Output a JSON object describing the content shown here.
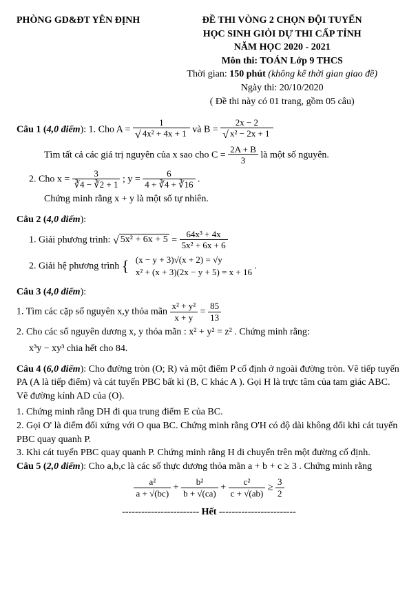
{
  "header": {
    "dept": "PHÒNG GD&ĐT YÊN ĐỊNH",
    "title1": "ĐỀ THI VÒNG 2 CHỌN ĐỘI TUYỂN",
    "title2": "HỌC SINH GIỎI DỰ THI CẤP TỈNH",
    "year": "NĂM HỌC 2020 - 2021",
    "subject": "Môn thi: TOÁN Lớp 9 THCS",
    "time_prefix": "Thời gian: ",
    "time_bold": "150 phút",
    "time_suffix": " (không kể thời gian giao đề)",
    "date": "Ngày thi: 20/10/2020",
    "note": "( Đề thi này có 01 trang, gồm 05 câu)"
  },
  "q1": {
    "label": "Câu 1 (",
    "points": "4,0 điểm",
    "label_end": "): 1.  Cho ",
    "A_lhs": "A =",
    "A_num": "1",
    "A_den_rad": "4x² + 4x + 1",
    "mid": "  và  ",
    "B_lhs": "B =",
    "B_num": "2x − 2",
    "B_den_rad": "x² − 2x + 1",
    "line2a": "Tìm tất cả các giá trị nguyên của  x  sao cho  ",
    "C_lhs": "C =",
    "C_num": "2A + B",
    "C_den": "3",
    "line2b": "  là một số nguyên.",
    "part2_pre": "2.   Cho x =",
    "x_num": "3",
    "x_den": "∛4 − ∛2 + 1",
    "part2_mid": " ; y =",
    "y_num": "6",
    "y_den": "4 + ∛4 + ∛16",
    "part2_end": " .",
    "line3": "Chứng minh rằng x + y là một số tự nhiên."
  },
  "q2": {
    "label": "Câu 2 (",
    "points": "4,0 điểm",
    "label_end": "):",
    "p1_pre": "1. Giải phương trình:    ",
    "p1_lhs_rad": "5x² + 6x + 5",
    "p1_eq": " = ",
    "p1_num": "64x³ + 4x",
    "p1_den": "5x² + 6x + 6",
    "p2_pre": "2. Giải hệ phương trình   ",
    "sys1": "(x − y + 3)√(x + 2) = √y",
    "sys2": "x² + (x + 3)(2x − y + 5) = x + 16",
    "p2_end": " ."
  },
  "q3": {
    "label": "Câu 3 (",
    "points": "4,0 điểm",
    "label_end": "):",
    "p1_pre": "1. Tìm các cặp số nguyên x,y thỏa mãn  ",
    "f1_num": "x² + y²",
    "f1_den": "x + y",
    "f1_eq": " = ",
    "f2_num": "85",
    "f2_den": "13",
    "p2": "2.  Cho các số nguyên dương x, y thỏa mãn : x² + y² = z² . Chứng minh rằng:",
    "p2b": "x³y − xy³ chia hết cho 84."
  },
  "q4": {
    "label": "Câu 4 (",
    "points": "6,0 điểm",
    "body1": "): Cho đường tròn (O; R) và một điểm P cố định ở ngoài đường tròn. Vẽ tiếp tuyến PA (A là tiếp điểm) và cát tuyến PBC bất kì (B, C khác A ). Gọi H là trực tâm của tam giác ABC. Vẽ đường kính AD của (O).",
    "p1": "1. Chứng minh rằng DH đi qua trung điểm E của BC.",
    "p2": "2. Gọi O' là điểm đối xứng với O qua BC. Chứng minh rằng O'H có độ dài không đổi khi cát tuyến PBC quay quanh P.",
    "p3": "3. Khi cát tuyến PBC quay quanh P. Chứng minh rằng H di chuyển trên một đường cố định."
  },
  "q5": {
    "label": "Câu 5 (",
    "points": "2,0 điểm",
    "body": "): Cho a,b,c là các số thực dương thỏa mãn  a + b + c ≥ 3 . Chứng minh rằng",
    "t1_num": "a²",
    "t1_den": "a + √(bc)",
    "t2_num": "b²",
    "t2_den": "b + √(ca)",
    "t3_num": "c²",
    "t3_den": "c + √(ab)",
    "rhs_num": "3",
    "rhs_den": "2"
  },
  "end": "------------------------ Hết ------------------------"
}
